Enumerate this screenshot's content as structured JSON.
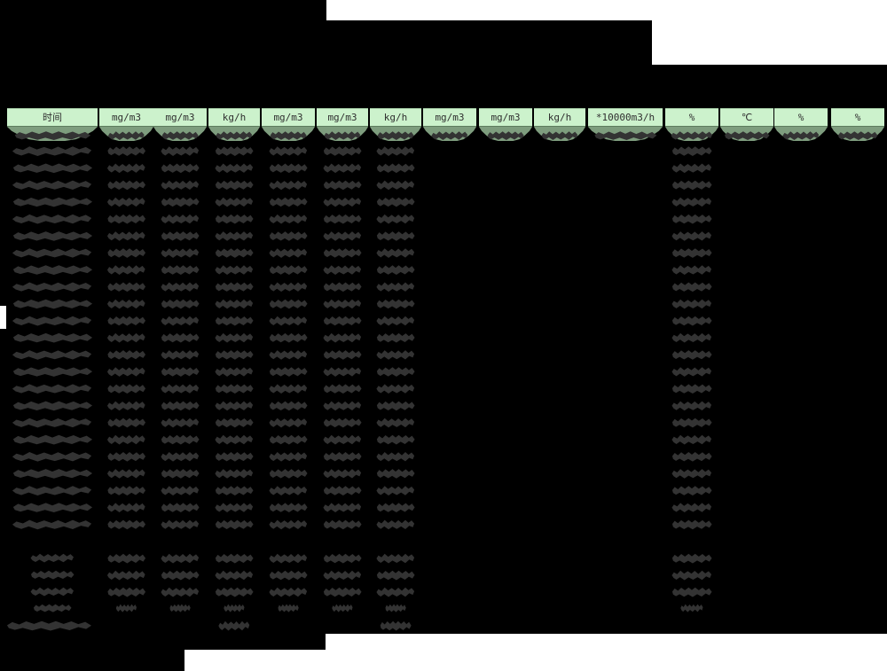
{
  "page": {
    "background_color": "#000000",
    "paper_color": "#ffffff",
    "description": "Redacted emissions monitoring report table"
  },
  "colors": {
    "header_fill": "#ccf2cc",
    "header_text": "#2f2f2f",
    "first_row_highlight": "#7e9d7e",
    "redaction_blob": "#333333",
    "redaction_background": "#000000"
  },
  "table": {
    "header_row": {
      "columns": [
        {
          "label": "时间"
        },
        {
          "label": "mg/m3"
        },
        {
          "label": "mg/m3"
        },
        {
          "label": "kg/h"
        },
        {
          "label": "mg/m3"
        },
        {
          "label": "mg/m3"
        },
        {
          "label": "kg/h"
        },
        {
          "label": "mg/m3"
        },
        {
          "label": "mg/m3"
        },
        {
          "label": "kg/h"
        },
        {
          "label": "*10000m3/h"
        },
        {
          "label": "%"
        },
        {
          "label": "℃"
        },
        {
          "label": "%"
        },
        {
          "label": "%"
        }
      ]
    },
    "redaction": {
      "first_row_all_columns_redacted": true,
      "hourly_data_row_count": 24,
      "columns_with_values_every_row": [
        1,
        2,
        3,
        4,
        5,
        6,
        7,
        12
      ],
      "summary_row_count": 4,
      "totals_row_value_columns": [
        4,
        7
      ],
      "all_values_redacted": true
    }
  }
}
